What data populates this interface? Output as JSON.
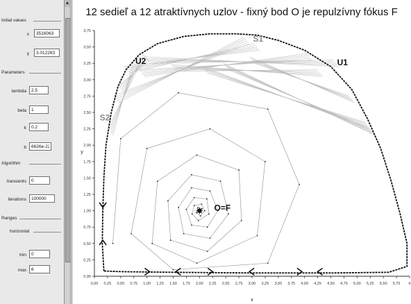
{
  "panel": {
    "initial_values": {
      "header": "Initial values",
      "x_label": "x",
      "x_value": "3516063",
      "y_label": "y",
      "y_value": "3.012283"
    },
    "parameters": {
      "header": "Parameters",
      "lambda_label": "lambda",
      "lambda_value": "2.5",
      "beta_label": "beta",
      "beta_value": "1",
      "k_label": "k",
      "k_value": "0.2",
      "b_label": "b",
      "b_value": "6626e-22"
    },
    "algorithm": {
      "header": "Algorithm",
      "transients_label": "transients",
      "transients_value": "0",
      "iterations_label": "iterations",
      "iterations_value": "100000"
    },
    "ranges": {
      "header": "Ranges",
      "horizontal_header": "horizontal",
      "min_label": "min",
      "min_value": "0",
      "max_label": "max",
      "max_value": "6"
    }
  },
  "chart_data": {
    "type": "scatter",
    "title": "12 sedieľ a 12 atraktívnych uzlov - fixný bod O je repulzívny fókus F",
    "xlabel": "x",
    "ylabel": "y",
    "xlim": [
      0,
      6
    ],
    "ylim": [
      0,
      3.75
    ],
    "x_ticks": [
      "0,00",
      "0,25",
      "0,50",
      "0,75",
      "1,00",
      "1,25",
      "1,50",
      "1,75",
      "2,00",
      "2,25",
      "2,50",
      "2,75",
      "3,00",
      "3,25",
      "3,50",
      "3,75",
      "4,00",
      "4,25",
      "4,50",
      "4,75",
      "5,00",
      "5,25",
      "5,50",
      "5,75",
      "6"
    ],
    "y_ticks": [
      "3,75",
      "3,50",
      "3,25",
      "3,00",
      "2,75",
      "2,50",
      "2,25",
      "2,00",
      "1,75",
      "1,50",
      "1,25",
      "1,00",
      "0,75",
      "0,50",
      "0,25",
      "0,00"
    ],
    "annotations": [
      {
        "text": "U2",
        "x": 0.78,
        "y": 3.24
      },
      {
        "text": "S1",
        "x": 3.02,
        "y": 3.58
      },
      {
        "text": "U1",
        "x": 4.62,
        "y": 3.22
      },
      {
        "text": "S2",
        "x": 0.1,
        "y": 2.38
      },
      {
        "text": "O=F",
        "x": 2.28,
        "y": 1.0
      }
    ],
    "fixed_point": {
      "label": "O=F",
      "x": 2.0,
      "y": 1.0
    },
    "boundary_cycle": [
      [
        0.18,
        0.08
      ],
      [
        0.15,
        0.5
      ],
      [
        0.16,
        1.0
      ],
      [
        0.18,
        1.5
      ],
      [
        0.22,
        2.0
      ],
      [
        0.32,
        2.5
      ],
      [
        0.45,
        2.9
      ],
      [
        0.6,
        3.15
      ],
      [
        0.85,
        3.38
      ],
      [
        1.2,
        3.55
      ],
      [
        1.7,
        3.66
      ],
      [
        2.2,
        3.7
      ],
      [
        2.7,
        3.7
      ],
      [
        3.1,
        3.68
      ],
      [
        3.5,
        3.6
      ],
      [
        4.0,
        3.45
      ],
      [
        4.5,
        3.2
      ],
      [
        4.9,
        2.85
      ],
      [
        5.2,
        2.4
      ],
      [
        5.45,
        1.95
      ],
      [
        5.65,
        1.45
      ],
      [
        5.82,
        0.95
      ],
      [
        5.95,
        0.5
      ],
      [
        5.95,
        0.15
      ],
      [
        5.6,
        0.06
      ],
      [
        4.5,
        0.05
      ],
      [
        3.0,
        0.05
      ],
      [
        1.5,
        0.06
      ],
      [
        0.5,
        0.07
      ],
      [
        0.18,
        0.08
      ]
    ],
    "spiral_orbit": [
      [
        2.0,
        1.0
      ],
      [
        2.03,
        0.98
      ],
      [
        2.05,
        1.03
      ],
      [
        1.97,
        1.05
      ],
      [
        1.94,
        0.97
      ],
      [
        2.02,
        0.92
      ],
      [
        2.1,
        1.0
      ],
      [
        2.04,
        1.1
      ],
      [
        1.9,
        1.08
      ],
      [
        1.86,
        0.95
      ],
      [
        1.98,
        0.85
      ],
      [
        2.18,
        0.95
      ],
      [
        2.14,
        1.18
      ],
      [
        1.9,
        1.2
      ],
      [
        1.75,
        1.02
      ],
      [
        1.85,
        0.78
      ],
      [
        2.15,
        0.75
      ],
      [
        2.35,
        1.0
      ],
      [
        2.2,
        1.3
      ],
      [
        1.85,
        1.35
      ],
      [
        1.6,
        1.05
      ],
      [
        1.7,
        0.65
      ],
      [
        2.2,
        0.58
      ],
      [
        2.55,
        0.95
      ],
      [
        2.4,
        1.45
      ],
      [
        1.85,
        1.55
      ],
      [
        1.4,
        1.15
      ],
      [
        1.45,
        0.55
      ],
      [
        2.15,
        0.38
      ],
      [
        2.8,
        0.85
      ],
      [
        2.75,
        1.62
      ],
      [
        1.95,
        1.85
      ],
      [
        1.2,
        1.45
      ],
      [
        1.1,
        0.5
      ],
      [
        1.95,
        0.2
      ],
      [
        3.1,
        0.62
      ],
      [
        3.25,
        1.75
      ],
      [
        2.2,
        2.25
      ],
      [
        1.0,
        1.95
      ],
      [
        0.7,
        0.65
      ],
      [
        1.5,
        0.1
      ],
      [
        3.3,
        0.2
      ],
      [
        3.9,
        1.4
      ],
      [
        3.3,
        2.55
      ],
      [
        1.6,
        2.8
      ],
      [
        0.5,
        2.1
      ],
      [
        0.35,
        0.5
      ]
    ],
    "saddle_connections": [
      {
        "from": [
          0.4,
          2.7
        ],
        "to": [
          2.9,
          3.6
        ]
      },
      {
        "from": [
          0.6,
          3.15
        ],
        "to": [
          3.1,
          3.5
        ]
      },
      {
        "from": [
          0.9,
          3.1
        ],
        "to": [
          4.1,
          3.35
        ]
      },
      {
        "from": [
          1.0,
          3.3
        ],
        "to": [
          4.6,
          3.25
        ]
      },
      {
        "from": [
          0.5,
          2.85
        ],
        "to": [
          1.0,
          3.35
        ]
      },
      {
        "from": [
          0.3,
          2.2
        ],
        "to": [
          0.8,
          3.25
        ]
      },
      {
        "from": [
          1.5,
          3.18
        ],
        "to": [
          4.3,
          3.1
        ]
      },
      {
        "from": [
          2.1,
          3.15
        ],
        "to": [
          5.2,
          2.3
        ]
      },
      {
        "from": [
          2.5,
          3.2
        ],
        "to": [
          5.3,
          2.2
        ]
      },
      {
        "from": [
          3.0,
          3.3
        ],
        "to": [
          4.9,
          2.7
        ]
      }
    ],
    "bottom_arrows": [
      {
        "x": 1.05,
        "dir": "right"
      },
      {
        "x": 1.55,
        "dir": "left"
      },
      {
        "x": 2.25,
        "dir": "right"
      },
      {
        "x": 2.95,
        "dir": "left"
      },
      {
        "x": 3.95,
        "dir": "right"
      },
      {
        "x": 4.25,
        "dir": "left"
      }
    ],
    "left_arrows": [
      {
        "y": 1.05,
        "dir": "down"
      },
      {
        "y": 0.55,
        "dir": "up"
      }
    ],
    "grid": false,
    "colors": {
      "boundary": "#111111",
      "spiral": "#8e8e8e",
      "saddle_fan": "#bcbcbc",
      "points": "#222222"
    }
  }
}
